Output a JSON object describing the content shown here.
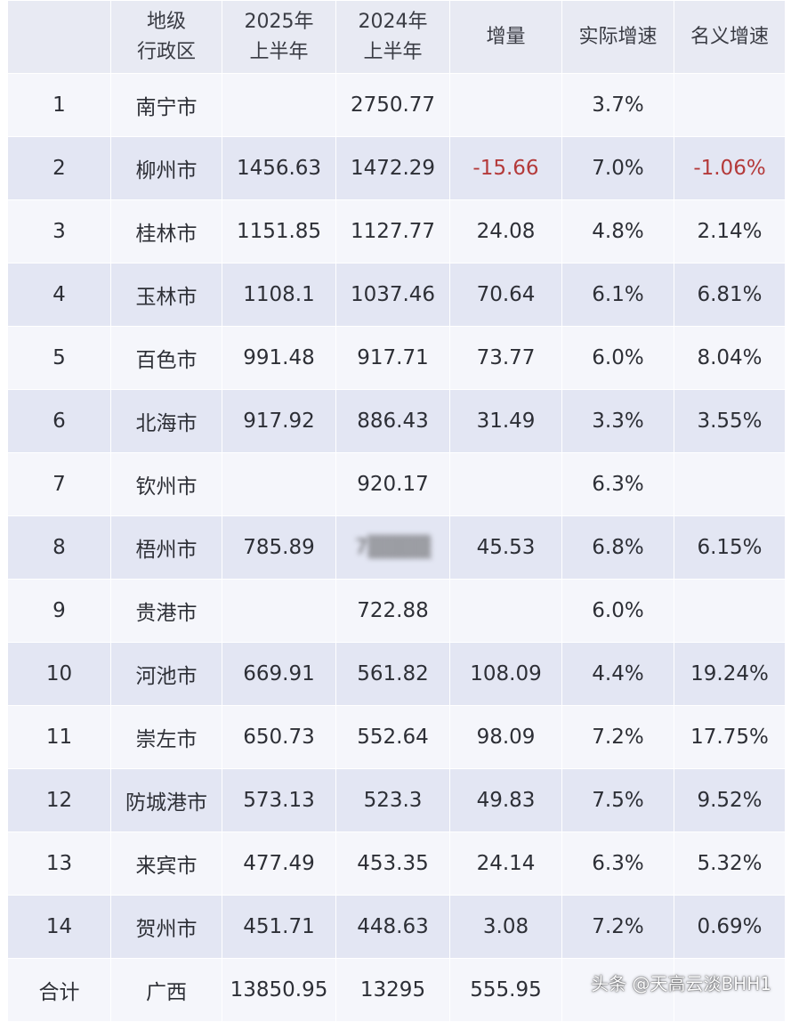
{
  "table": {
    "headers": [
      "",
      "地级\n行政区",
      "2025年\n上半年",
      "2024年\n上半年",
      "增量",
      "实际增速",
      "名义增速"
    ],
    "rows": [
      {
        "cells": [
          "1",
          "南宁市",
          "",
          "2750.77",
          "",
          "3.7%",
          ""
        ]
      },
      {
        "cells": [
          "2",
          "柳州市",
          "1456.63",
          "1472.29",
          "-15.66",
          "7.0%",
          "-1.06%"
        ]
      },
      {
        "cells": [
          "3",
          "桂林市",
          "1151.85",
          "1127.77",
          "24.08",
          "4.8%",
          "2.14%"
        ]
      },
      {
        "cells": [
          "4",
          "玉林市",
          "1108.1",
          "1037.46",
          "70.64",
          "6.1%",
          "6.81%"
        ]
      },
      {
        "cells": [
          "5",
          "百色市",
          "991.48",
          "917.71",
          "73.77",
          "6.0%",
          "8.04%"
        ]
      },
      {
        "cells": [
          "6",
          "北海市",
          "917.92",
          "886.43",
          "31.49",
          "3.3%",
          "3.55%"
        ]
      },
      {
        "cells": [
          "7",
          "钦州市",
          "",
          "920.17",
          "",
          "6.3%",
          ""
        ]
      },
      {
        "cells": [
          "8",
          "梧州市",
          "785.89",
          "7▒▒▒▒",
          "45.53",
          "6.8%",
          "6.15%"
        ]
      },
      {
        "cells": [
          "9",
          "贵港市",
          "",
          "722.88",
          "",
          "6.0%",
          ""
        ]
      },
      {
        "cells": [
          "10",
          "河池市",
          "669.91",
          "561.82",
          "108.09",
          "4.4%",
          "19.24%"
        ]
      },
      {
        "cells": [
          "11",
          "崇左市",
          "650.73",
          "552.64",
          "98.09",
          "7.2%",
          "17.75%"
        ]
      },
      {
        "cells": [
          "12",
          "防城港市",
          "573.13",
          "523.3",
          "49.83",
          "7.5%",
          "9.52%"
        ]
      },
      {
        "cells": [
          "13",
          "来宾市",
          "477.49",
          "453.35",
          "24.14",
          "6.3%",
          "5.32%"
        ]
      },
      {
        "cells": [
          "14",
          "贺州市",
          "451.71",
          "448.63",
          "3.08",
          "7.2%",
          "0.69%"
        ]
      }
    ],
    "total": {
      "cells": [
        "合计",
        "广西",
        "13850.95",
        "13295",
        "555.95",
        "",
        ""
      ]
    }
  },
  "watermark": "头条 @天高云淡BHH1",
  "colors": {
    "negative": "#b43a3a",
    "row_light": "#f5f6fb",
    "row_dark": "#e3e6f3",
    "header": "#e8eaf3",
    "text": "#2d2f36"
  }
}
